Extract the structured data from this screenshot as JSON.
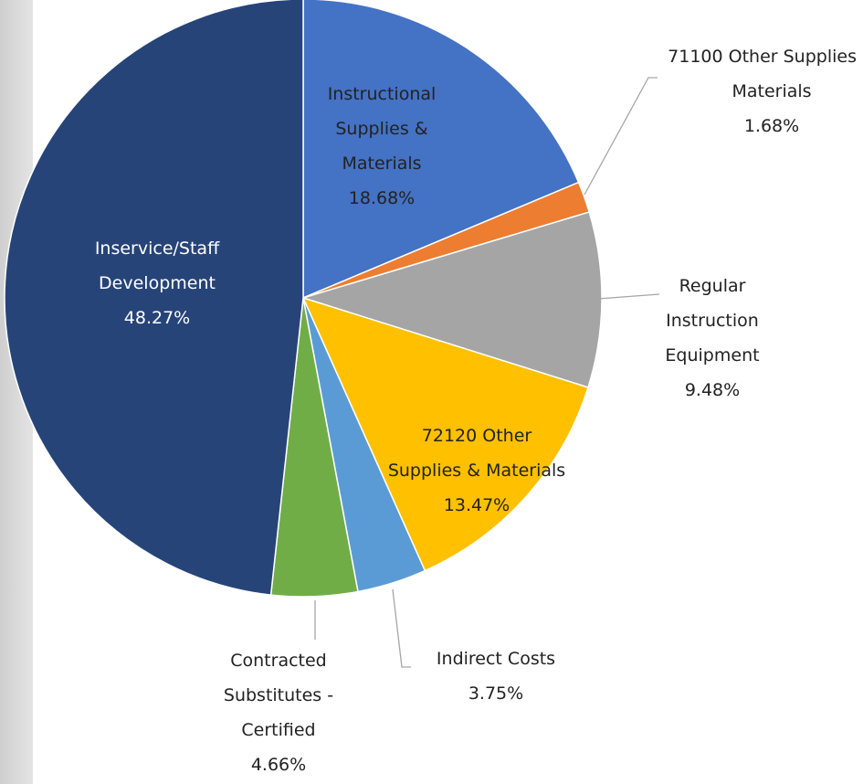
{
  "chart_data": {
    "type": "pie",
    "categories": [
      "Instructional Supplies & Materials",
      "71100 Other Supplies & Materials",
      "Regular Instruction Equipment",
      "72120 Other Supplies & Materials",
      "Indirect Costs",
      "Contracted Substitutes - Certified",
      "Inservice/Staff Development"
    ],
    "values": [
      18.68,
      1.68,
      9.48,
      13.47,
      3.75,
      4.66,
      48.27
    ],
    "value_labels": [
      "18.68%",
      "1.68%",
      "9.48%",
      "13.47%",
      "3.75%",
      "4.66%",
      "48.27%"
    ],
    "colors": [
      "#4472c4",
      "#ed7d31",
      "#a5a5a5",
      "#ffc000",
      "#5b9bd5",
      "#70ad47",
      "#264478"
    ]
  }
}
